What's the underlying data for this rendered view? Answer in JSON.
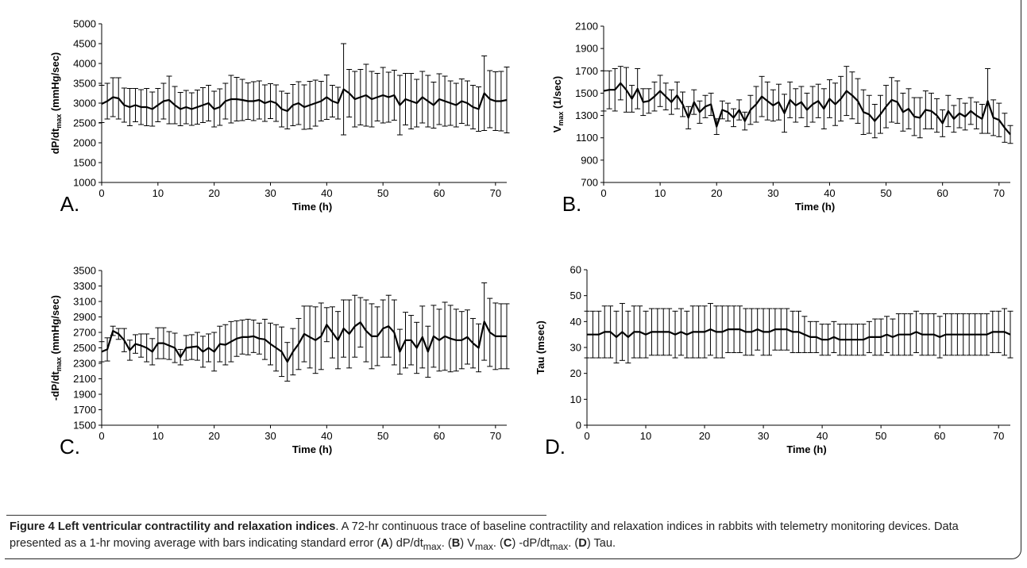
{
  "chart_data": [
    {
      "panel": "A.",
      "type": "line",
      "xlabel": "Time (h)",
      "ylabel": "dP/dt",
      "ylabel_sub": "max",
      "ylabel_tail": " (mmHg/sec)",
      "xlim": [
        0,
        72
      ],
      "ylim": [
        1000,
        5000
      ],
      "xticks": [
        0,
        10,
        20,
        30,
        40,
        50,
        60,
        70
      ],
      "yticks": [
        1000,
        1500,
        2000,
        2500,
        3000,
        3500,
        4000,
        4500,
        5000
      ],
      "x": [
        0,
        1,
        2,
        3,
        4,
        5,
        6,
        7,
        8,
        9,
        10,
        11,
        12,
        13,
        14,
        15,
        16,
        17,
        18,
        19,
        20,
        21,
        22,
        23,
        24,
        25,
        26,
        27,
        28,
        29,
        30,
        31,
        32,
        33,
        34,
        35,
        36,
        37,
        38,
        39,
        40,
        41,
        42,
        43,
        44,
        45,
        46,
        47,
        48,
        49,
        50,
        51,
        52,
        53,
        54,
        55,
        56,
        57,
        58,
        59,
        60,
        61,
        62,
        63,
        64,
        65,
        66,
        67,
        68,
        69,
        70,
        71,
        72
      ],
      "values": [
        2980,
        3050,
        3150,
        3120,
        2950,
        2900,
        2950,
        2900,
        2900,
        2850,
        2950,
        3050,
        3080,
        2950,
        2850,
        2900,
        2850,
        2900,
        2950,
        3000,
        2850,
        2900,
        3050,
        3100,
        3100,
        3080,
        3050,
        3050,
        3080,
        3000,
        3050,
        3000,
        2850,
        2800,
        2950,
        3000,
        2900,
        2950,
        3000,
        3050,
        3150,
        3050,
        3000,
        3350,
        3250,
        3100,
        3150,
        3200,
        3100,
        3150,
        3200,
        3150,
        3200,
        2950,
        3100,
        3050,
        3000,
        3150,
        3050,
        2950,
        3100,
        3050,
        3000,
        2950,
        3050,
        3000,
        2900,
        2850,
        3250,
        3100,
        3050,
        3050,
        3080
      ],
      "errors": [
        470,
        450,
        490,
        520,
        430,
        470,
        420,
        440,
        470,
        430,
        420,
        450,
        600,
        470,
        420,
        420,
        410,
        430,
        440,
        450,
        450,
        460,
        450,
        600,
        550,
        520,
        460,
        490,
        480,
        460,
        440,
        460,
        450,
        450,
        520,
        540,
        560,
        600,
        580,
        500,
        560,
        400,
        400,
        1150,
        600,
        700,
        700,
        780,
        700,
        600,
        700,
        630,
        630,
        750,
        650,
        700,
        600,
        650,
        650,
        580,
        640,
        630,
        560,
        550,
        560,
        560,
        550,
        560,
        940,
        720,
        740,
        750,
        830
      ]
    },
    {
      "panel": "B.",
      "type": "line",
      "xlabel": "Time (h)",
      "ylabel": "V",
      "ylabel_sub": "max",
      "ylabel_tail": " (1/sec)",
      "xlim": [
        0,
        72
      ],
      "ylim": [
        700,
        2100
      ],
      "xticks": [
        0,
        10,
        20,
        30,
        40,
        50,
        60,
        70
      ],
      "yticks": [
        700,
        900,
        1100,
        1300,
        1500,
        1700,
        1900,
        2100
      ],
      "x": [
        0,
        1,
        2,
        3,
        4,
        5,
        6,
        7,
        8,
        9,
        10,
        11,
        12,
        13,
        14,
        15,
        16,
        17,
        18,
        19,
        20,
        21,
        22,
        23,
        24,
        25,
        26,
        27,
        28,
        29,
        30,
        31,
        32,
        33,
        34,
        35,
        36,
        37,
        38,
        39,
        40,
        41,
        42,
        43,
        44,
        45,
        46,
        47,
        48,
        49,
        50,
        51,
        52,
        53,
        54,
        55,
        56,
        57,
        58,
        59,
        60,
        61,
        62,
        63,
        64,
        65,
        66,
        67,
        68,
        69,
        70,
        71,
        72
      ],
      "values": [
        1520,
        1530,
        1530,
        1590,
        1530,
        1450,
        1540,
        1420,
        1430,
        1470,
        1520,
        1470,
        1420,
        1480,
        1400,
        1280,
        1420,
        1330,
        1380,
        1400,
        1200,
        1350,
        1330,
        1280,
        1350,
        1250,
        1350,
        1400,
        1470,
        1430,
        1390,
        1420,
        1320,
        1440,
        1390,
        1420,
        1350,
        1400,
        1430,
        1360,
        1450,
        1400,
        1450,
        1520,
        1480,
        1430,
        1330,
        1310,
        1250,
        1310,
        1380,
        1440,
        1420,
        1330,
        1360,
        1290,
        1280,
        1350,
        1340,
        1300,
        1230,
        1340,
        1270,
        1320,
        1290,
        1340,
        1300,
        1270,
        1430,
        1280,
        1260,
        1190,
        1130
      ],
      "errors": [
        180,
        170,
        190,
        150,
        200,
        120,
        180,
        120,
        110,
        130,
        140,
        120,
        110,
        120,
        110,
        100,
        110,
        100,
        100,
        100,
        70,
        80,
        80,
        80,
        90,
        80,
        130,
        160,
        180,
        170,
        140,
        160,
        170,
        160,
        150,
        140,
        150,
        160,
        150,
        180,
        170,
        190,
        200,
        220,
        210,
        200,
        200,
        170,
        150,
        170,
        190,
        200,
        190,
        170,
        180,
        170,
        180,
        170,
        160,
        150,
        120,
        140,
        120,
        130,
        120,
        120,
        120,
        130,
        290,
        160,
        150,
        130,
        80
      ]
    },
    {
      "panel": "C.",
      "type": "line",
      "xlabel": "Time (h)",
      "ylabel": "-dP/dt",
      "ylabel_sub": "max",
      "ylabel_tail": " (mmHg/sec)",
      "xlim": [
        0,
        72
      ],
      "ylim": [
        1500,
        3500
      ],
      "xticks": [
        0,
        10,
        20,
        30,
        40,
        50,
        60,
        70
      ],
      "yticks": [
        1500,
        1700,
        1900,
        2100,
        2300,
        2500,
        2700,
        2900,
        3100,
        3300,
        3500
      ],
      "x": [
        0,
        1,
        2,
        3,
        4,
        5,
        6,
        7,
        8,
        9,
        10,
        11,
        12,
        13,
        14,
        15,
        16,
        17,
        18,
        19,
        20,
        21,
        22,
        23,
        24,
        25,
        26,
        27,
        28,
        29,
        30,
        31,
        32,
        33,
        34,
        35,
        36,
        37,
        38,
        39,
        40,
        41,
        42,
        43,
        44,
        45,
        46,
        47,
        48,
        49,
        50,
        51,
        52,
        53,
        54,
        55,
        56,
        57,
        58,
        59,
        60,
        61,
        62,
        63,
        64,
        65,
        66,
        67,
        68,
        69,
        70,
        71,
        72
      ],
      "values": [
        2450,
        2480,
        2720,
        2680,
        2600,
        2470,
        2550,
        2530,
        2500,
        2450,
        2560,
        2560,
        2530,
        2500,
        2380,
        2500,
        2510,
        2520,
        2450,
        2500,
        2450,
        2550,
        2540,
        2580,
        2620,
        2640,
        2640,
        2650,
        2620,
        2610,
        2550,
        2500,
        2450,
        2320,
        2450,
        2550,
        2680,
        2640,
        2600,
        2650,
        2800,
        2700,
        2600,
        2750,
        2680,
        2780,
        2830,
        2720,
        2650,
        2650,
        2750,
        2780,
        2700,
        2450,
        2600,
        2600,
        2500,
        2640,
        2450,
        2650,
        2600,
        2650,
        2620,
        2600,
        2600,
        2640,
        2560,
        2500,
        2840,
        2700,
        2650,
        2650,
        2650
      ],
      "errors": [
        130,
        150,
        60,
        70,
        150,
        130,
        120,
        150,
        180,
        170,
        200,
        200,
        180,
        190,
        100,
        160,
        160,
        180,
        200,
        180,
        250,
        230,
        260,
        260,
        230,
        220,
        230,
        210,
        200,
        260,
        270,
        300,
        320,
        250,
        300,
        330,
        360,
        400,
        430,
        430,
        220,
        330,
        370,
        370,
        440,
        400,
        320,
        400,
        420,
        380,
        370,
        400,
        420,
        290,
        360,
        320,
        330,
        400,
        330,
        400,
        400,
        440,
        430,
        400,
        370,
        350,
        320,
        310,
        500,
        440,
        430,
        420,
        420
      ]
    },
    {
      "panel": "D.",
      "type": "line",
      "xlabel": "Time (h)",
      "ylabel": "Tau (msec)",
      "ylabel_sub": "",
      "ylabel_tail": "",
      "xlim": [
        0,
        72
      ],
      "ylim": [
        0,
        60
      ],
      "xticks": [
        0,
        10,
        20,
        30,
        40,
        50,
        60,
        70
      ],
      "yticks": [
        0,
        10,
        20,
        30,
        40,
        50,
        60
      ],
      "x": [
        0,
        1,
        2,
        3,
        4,
        5,
        6,
        7,
        8,
        9,
        10,
        11,
        12,
        13,
        14,
        15,
        16,
        17,
        18,
        19,
        20,
        21,
        22,
        23,
        24,
        25,
        26,
        27,
        28,
        29,
        30,
        31,
        32,
        33,
        34,
        35,
        36,
        37,
        38,
        39,
        40,
        41,
        42,
        43,
        44,
        45,
        46,
        47,
        48,
        49,
        50,
        51,
        52,
        53,
        54,
        55,
        56,
        57,
        58,
        59,
        60,
        61,
        62,
        63,
        64,
        65,
        66,
        67,
        68,
        69,
        70,
        71,
        72
      ],
      "values": [
        35,
        35,
        35,
        36,
        36,
        34,
        36,
        34,
        36,
        36,
        35,
        36,
        36,
        36,
        36,
        35,
        36,
        35,
        36,
        36,
        36,
        37,
        36,
        36,
        37,
        37,
        37,
        36,
        36,
        37,
        36,
        36,
        37,
        37,
        37,
        36,
        36,
        35,
        34,
        34,
        33,
        33,
        34,
        33,
        33,
        33,
        33,
        33,
        34,
        34,
        34,
        35,
        34,
        35,
        35,
        35,
        36,
        35,
        35,
        35,
        34,
        35,
        35,
        35,
        35,
        35,
        35,
        35,
        35,
        36,
        36,
        36,
        35
      ],
      "errors": [
        9,
        9,
        9,
        10,
        10,
        10,
        11,
        10,
        10,
        10,
        9,
        9,
        9,
        9,
        9,
        9,
        9,
        9,
        10,
        10,
        10,
        10,
        10,
        10,
        9,
        9,
        9,
        9,
        9,
        8,
        9,
        9,
        8,
        8,
        8,
        8,
        8,
        7,
        6,
        6,
        6,
        6,
        6,
        6,
        6,
        6,
        6,
        6,
        6,
        7,
        7,
        7,
        7,
        8,
        8,
        8,
        8,
        8,
        8,
        8,
        8,
        8,
        8,
        8,
        8,
        8,
        8,
        8,
        8,
        8,
        8,
        9,
        9
      ]
    }
  ],
  "caption": {
    "fig_label": "Figure 4 Left ventricular contractility and relaxation indices",
    "text_1": ". A 72-hr continuous trace of baseline contractility and relaxation indices in rabbits with telemetry monitoring devices. Data presented as a 1-hr moving average with bars indicating standard error (",
    "a": "A",
    "text_2": ") dP/dt",
    "sub_1": "max",
    "text_3": ". (",
    "b": "B",
    "text_4": ") V",
    "sub_2": "max",
    "text_5": ". (",
    "c": "C",
    "text_6": ") -dP/dt",
    "sub_3": "max",
    "text_7": ". (",
    "d": "D",
    "text_8": ") Tau."
  }
}
